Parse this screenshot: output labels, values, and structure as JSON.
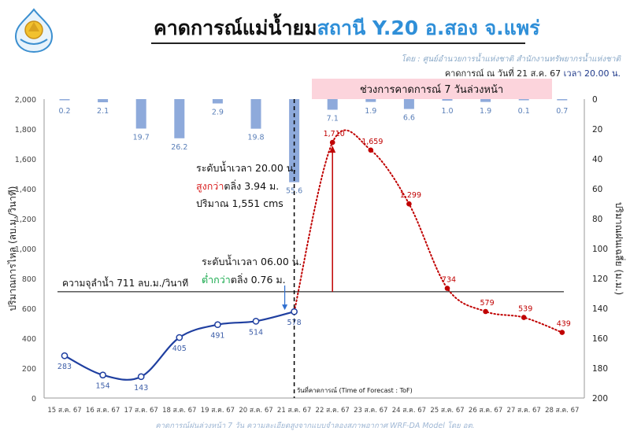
{
  "header": {
    "title_part1": "คาดการณ์แม่น้ำยม",
    "title_part2": "สถานี Y.20 อ.สอง จ.แพร่",
    "source": "โดย : ศูนย์อำนวยการน้ำแห่งชาติ สำนักงานทรัพยากรน้ำแห่งชาติ",
    "forecast_date": "คาดการณ์ ณ วันที่ 21 ส.ค. 67",
    "forecast_time": "เวลา 20.00 น."
  },
  "footer": "คาดการณ์ฝนล่วงหน้า 7 วัน ความละเอียดสูงจากแบบจำลองสภาพอากาศ WRF-DA Model โดย อต.",
  "colors": {
    "observed": "#1f3fa0",
    "forecast": "#c00000",
    "rain": "#8eaadb",
    "capacity": "#000000",
    "forecast_band": "#fcd4dc"
  },
  "chart_data": {
    "type": "line",
    "categories": [
      "15 ส.ค. 67",
      "16 ส.ค. 67",
      "17 ส.ค. 67",
      "18 ส.ค. 67",
      "19 ส.ค. 67",
      "20 ส.ค. 67",
      "21 ส.ค. 67",
      "22 ส.ค. 67",
      "23 ส.ค. 67",
      "24 ส.ค. 67",
      "25 ส.ค. 67",
      "26 ส.ค. 67",
      "27 ส.ค. 67",
      "28 ส.ค. 67"
    ],
    "ylabel": "ปริมาณการไหล (ลบ.ม./วินาที)",
    "ylabel_right": "ปริมาณฝนเฉลี่ย (ม.ม.)",
    "ylim": [
      0,
      2000
    ],
    "yticks": [
      "0",
      "200",
      "400",
      "600",
      "800",
      "1,000",
      "1,200",
      "1,400",
      "1,600",
      "1,800",
      "2,000"
    ],
    "ylim_right": [
      0,
      200
    ],
    "yticks_right": [
      "0",
      "20",
      "40",
      "60",
      "80",
      "100",
      "120",
      "140",
      "160",
      "180",
      "200"
    ],
    "grid": false,
    "series": [
      {
        "kind": "observed",
        "x": [
          0,
          1,
          2,
          3,
          4,
          5,
          6
        ],
        "values": [
          283,
          154,
          143,
          405,
          491,
          514,
          578
        ],
        "labels": [
          "283",
          "154",
          "143",
          "405",
          "491",
          "514",
          "578"
        ]
      },
      {
        "kind": "forecast",
        "x": [
          7,
          8,
          9,
          10,
          11,
          12,
          13
        ],
        "values": [
          1710,
          1659,
          1299,
          734,
          579,
          539,
          439
        ],
        "labels": [
          "1,710",
          "1,659",
          "1,299",
          "734",
          "579",
          "539",
          "439"
        ]
      }
    ],
    "rainfall": {
      "values": [
        0.2,
        2.1,
        19.7,
        26.2,
        2.9,
        19.8,
        55.6,
        7.1,
        1.9,
        6.6,
        1.0,
        1.9,
        0.1,
        0.7
      ],
      "labels": [
        "0.2",
        "2.1",
        "19.7",
        "26.2",
        "2.9",
        "19.8",
        "55.6",
        "7.1",
        "1.9",
        "6.6",
        "1.0",
        "1.9",
        "0.1",
        "0.7"
      ]
    },
    "capacity": {
      "value": 711,
      "label": "ความจุลำน้ำ 711 ลบ.ม./วินาที"
    },
    "forecast_band_label": "ช่วงการคาดการณ์ 7 วันล่วงหน้า",
    "tof_label": "วันที่คาดการณ์ (Time of Forecast : ToF)",
    "annotations": {
      "current": {
        "line1": "ระดับน้ำเวลา 20.00 น.",
        "line2_colored": "สูงกว่า",
        "line2_rest": "ตลิ่ง 3.94 ม.",
        "line3": "ปริมาณ 1,551 cms"
      },
      "morning": {
        "line1": "ระดับน้ำเวลา 06.00 น.",
        "line2_colored": "ต่ำกว่า",
        "line2_rest": "ตลิ่ง 0.76 ม."
      }
    }
  }
}
